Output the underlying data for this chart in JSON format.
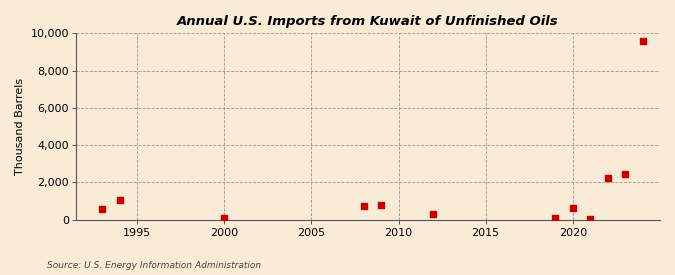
{
  "title": "Annual U.S. Imports from Kuwait of Unfinished Oils",
  "ylabel": "Thousand Barrels",
  "source": "Source: U.S. Energy Information Administration",
  "background_color": "#faebd7",
  "plot_bg_color": "#faebd7",
  "marker_color": "#cc0000",
  "xlim": [
    1991.5,
    2025
  ],
  "ylim": [
    0,
    10000
  ],
  "yticks": [
    0,
    2000,
    4000,
    6000,
    8000,
    10000
  ],
  "xticks": [
    1995,
    2000,
    2005,
    2010,
    2015,
    2020
  ],
  "data": [
    [
      1993,
      580
    ],
    [
      1994,
      1050
    ],
    [
      2000,
      70
    ],
    [
      2008,
      760
    ],
    [
      2009,
      810
    ],
    [
      2012,
      290
    ],
    [
      2019,
      110
    ],
    [
      2020,
      650
    ],
    [
      2021,
      60
    ],
    [
      2022,
      2250
    ],
    [
      2023,
      2430
    ],
    [
      2024,
      9580
    ]
  ]
}
